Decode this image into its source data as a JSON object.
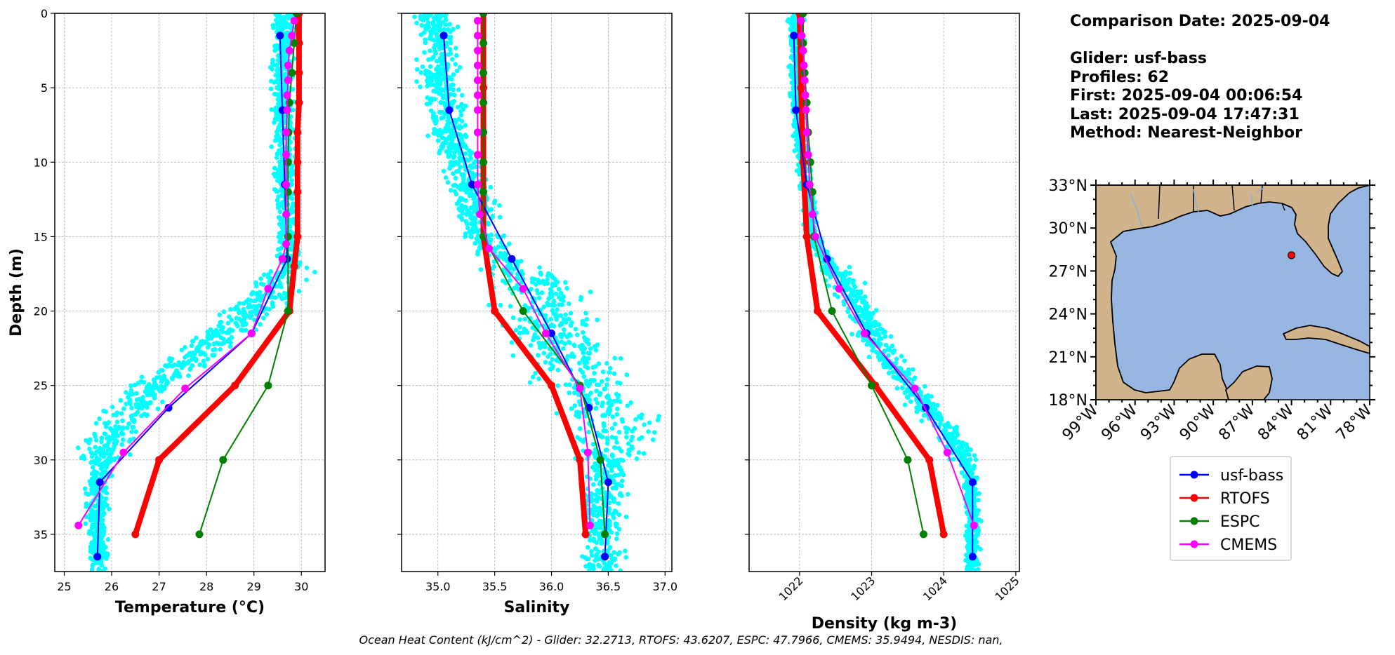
{
  "info": {
    "comparison_date": "Comparison Date: 2025-09-04",
    "glider": "Glider: usf-bass",
    "profiles": "Profiles: 62",
    "first": "First: 2025-09-04 00:06:54",
    "last": "Last: 2025-09-04 17:47:31",
    "method": "Method: Nearest-Neighbor"
  },
  "footer": "Ocean Heat Content (kJ/cm^2) - Glider: 32.2713,  RTOFS: 43.6207,  ESPC: 47.7966,  CMEMS: 35.9494,  NESDIS: nan,",
  "colors": {
    "usf-bass": "#0000ff",
    "RTOFS": "#ff0000",
    "ESPC": "#008000",
    "CMEMS": "#ff00ff",
    "scatter": "#00ffff",
    "land": "#d2b48c",
    "ocean": "#97b6e1"
  },
  "legend": [
    "usf-bass",
    "RTOFS",
    "ESPC",
    "CMEMS"
  ],
  "map": {
    "lat_labels": [
      "33°N",
      "30°N",
      "27°N",
      "24°N",
      "21°N",
      "18°N"
    ],
    "lon_labels": [
      "99°W",
      "96°W",
      "93°W",
      "90°W",
      "87°W",
      "84°W",
      "81°W",
      "78°W"
    ],
    "glider_position": {
      "lon": -84.0,
      "lat": 28.1
    }
  },
  "chart_data": [
    {
      "type": "line",
      "xlabel": "Temperature (°C)",
      "ylabel": "Depth (m)",
      "xlim": [
        24.8,
        30.5
      ],
      "ylim": [
        37.5,
        0
      ],
      "xticks": [
        "25",
        "26",
        "27",
        "28",
        "29",
        "30"
      ],
      "yticks": [
        "0",
        "5",
        "10",
        "15",
        "20",
        "25",
        "30",
        "35"
      ],
      "grid": true,
      "scatter_cloud": [
        [
          0,
          29.65
        ],
        [
          2,
          29.6
        ],
        [
          5,
          29.6
        ],
        [
          8,
          29.62
        ],
        [
          10,
          29.65
        ],
        [
          12,
          29.65
        ],
        [
          15,
          29.7
        ],
        [
          17,
          29.75
        ],
        [
          18,
          29.5
        ],
        [
          19,
          29.3
        ],
        [
          20,
          29.0
        ],
        [
          21,
          28.6
        ],
        [
          22,
          28.1
        ],
        [
          23,
          27.7
        ],
        [
          24,
          27.3
        ],
        [
          25,
          26.9
        ],
        [
          26,
          26.6
        ],
        [
          27,
          26.3
        ],
        [
          28,
          26.1
        ],
        [
          29,
          25.9
        ],
        [
          30,
          25.8
        ],
        [
          31,
          25.75
        ],
        [
          33,
          25.7
        ],
        [
          35,
          25.7
        ],
        [
          37,
          25.7
        ]
      ],
      "series": [
        {
          "name": "usf-bass",
          "points": [
            [
              29.55,
              1.5
            ],
            [
              29.6,
              6.5
            ],
            [
              29.65,
              11.5
            ],
            [
              29.7,
              16.5
            ],
            [
              28.95,
              21.5
            ],
            [
              27.2,
              26.5
            ],
            [
              25.75,
              31.5
            ],
            [
              25.7,
              36.5
            ]
          ]
        },
        {
          "name": "RTOFS",
          "points": [
            [
              29.95,
              0
            ],
            [
              29.95,
              2
            ],
            [
              29.95,
              4
            ],
            [
              29.95,
              6
            ],
            [
              29.92,
              8
            ],
            [
              29.92,
              10
            ],
            [
              29.92,
              12
            ],
            [
              29.92,
              15
            ],
            [
              29.85,
              17
            ],
            [
              29.75,
              20
            ],
            [
              28.6,
              25
            ],
            [
              27.0,
              30
            ],
            [
              26.5,
              35
            ]
          ]
        },
        {
          "name": "ESPC",
          "points": [
            [
              29.9,
              0
            ],
            [
              29.85,
              2
            ],
            [
              29.8,
              4
            ],
            [
              29.75,
              6
            ],
            [
              29.73,
              8
            ],
            [
              29.72,
              10
            ],
            [
              29.72,
              12
            ],
            [
              29.72,
              15
            ],
            [
              29.72,
              20
            ],
            [
              29.3,
              25
            ],
            [
              28.35,
              30
            ],
            [
              27.85,
              35
            ]
          ]
        },
        {
          "name": "CMEMS",
          "points": [
            [
              29.85,
              0.5
            ],
            [
              29.8,
              1.5
            ],
            [
              29.75,
              2.5
            ],
            [
              29.72,
              3.5
            ],
            [
              29.72,
              4.5
            ],
            [
              29.7,
              5.5
            ],
            [
              29.7,
              6.5
            ],
            [
              29.68,
              8.0
            ],
            [
              29.68,
              9.5
            ],
            [
              29.68,
              11.5
            ],
            [
              29.68,
              13.5
            ],
            [
              29.68,
              15.5
            ],
            [
              29.6,
              16.5
            ],
            [
              29.3,
              18.5
            ],
            [
              28.95,
              21.5
            ],
            [
              27.55,
              25.2
            ],
            [
              26.25,
              29.5
            ],
            [
              25.3,
              34.4
            ]
          ]
        }
      ]
    },
    {
      "type": "line",
      "xlabel": "Salinity",
      "xlim": [
        34.68,
        37.06
      ],
      "ylim": [
        37.5,
        0
      ],
      "xticks": [
        "35.0",
        "35.5",
        "36.0",
        "36.5",
        "37.0"
      ],
      "grid": true,
      "scatter_cloud": [
        [
          0,
          34.95
        ],
        [
          2,
          35.0
        ],
        [
          4,
          35.0
        ],
        [
          6,
          35.05
        ],
        [
          8,
          35.1
        ],
        [
          10,
          35.2
        ],
        [
          12,
          35.3
        ],
        [
          14,
          35.35
        ],
        [
          15,
          35.4
        ],
        [
          16,
          35.5
        ],
        [
          17,
          35.65
        ],
        [
          18,
          35.8
        ],
        [
          19,
          35.9
        ],
        [
          20,
          35.95
        ],
        [
          21,
          36.0
        ],
        [
          22,
          36.05
        ],
        [
          23,
          36.15
        ],
        [
          24,
          36.25
        ],
        [
          25,
          36.3
        ],
        [
          26,
          36.4
        ],
        [
          27,
          36.45
        ],
        [
          28,
          36.6
        ],
        [
          29,
          36.6
        ],
        [
          30,
          36.55
        ],
        [
          31,
          36.5
        ],
        [
          33,
          36.45
        ],
        [
          35,
          36.45
        ],
        [
          37,
          36.45
        ]
      ],
      "series": [
        {
          "name": "usf-bass",
          "points": [
            [
              35.05,
              1.5
            ],
            [
              35.1,
              6.5
            ],
            [
              35.3,
              11.5
            ],
            [
              35.65,
              16.5
            ],
            [
              36.0,
              21.5
            ],
            [
              36.33,
              26.5
            ],
            [
              36.5,
              31.5
            ],
            [
              36.47,
              36.5
            ]
          ]
        },
        {
          "name": "RTOFS",
          "points": [
            [
              35.4,
              0
            ],
            [
              35.4,
              5
            ],
            [
              35.4,
              10
            ],
            [
              35.4,
              15
            ],
            [
              35.5,
              20
            ],
            [
              36.0,
              25
            ],
            [
              36.25,
              30
            ],
            [
              36.3,
              35
            ]
          ]
        },
        {
          "name": "ESPC",
          "points": [
            [
              35.4,
              0
            ],
            [
              35.4,
              2
            ],
            [
              35.4,
              4
            ],
            [
              35.4,
              6
            ],
            [
              35.4,
              8
            ],
            [
              35.4,
              10
            ],
            [
              35.4,
              12
            ],
            [
              35.4,
              15
            ],
            [
              35.75,
              20
            ],
            [
              36.25,
              25
            ],
            [
              36.43,
              30
            ],
            [
              36.47,
              35
            ]
          ]
        },
        {
          "name": "CMEMS",
          "points": [
            [
              35.35,
              0.5
            ],
            [
              35.35,
              1.5
            ],
            [
              35.35,
              2.5
            ],
            [
              35.35,
              3.5
            ],
            [
              35.35,
              4.5
            ],
            [
              35.35,
              5.5
            ],
            [
              35.35,
              6.5
            ],
            [
              35.35,
              8.0
            ],
            [
              35.35,
              9.5
            ],
            [
              35.35,
              11.5
            ],
            [
              35.37,
              13.5
            ],
            [
              35.45,
              15.8
            ],
            [
              35.75,
              18.5
            ],
            [
              35.95,
              21.5
            ],
            [
              36.25,
              25.2
            ],
            [
              36.32,
              29.5
            ],
            [
              36.34,
              34.4
            ]
          ]
        }
      ]
    },
    {
      "type": "line",
      "xlabel": "Density (kg m-3)",
      "xlim": [
        1021.3,
        1025.05
      ],
      "ylim": [
        37.5,
        0
      ],
      "xticks": [
        "1022",
        "1023",
        "1024",
        "1025"
      ],
      "grid": true,
      "scatter_cloud": [
        [
          0,
          1021.95
        ],
        [
          2,
          1021.95
        ],
        [
          5,
          1021.95
        ],
        [
          8,
          1022.0
        ],
        [
          10,
          1022.05
        ],
        [
          12,
          1022.1
        ],
        [
          14,
          1022.15
        ],
        [
          15,
          1022.2
        ],
        [
          16,
          1022.3
        ],
        [
          17,
          1022.45
        ],
        [
          18,
          1022.6
        ],
        [
          19,
          1022.75
        ],
        [
          20,
          1022.85
        ],
        [
          21,
          1022.95
        ],
        [
          22,
          1023.05
        ],
        [
          23,
          1023.2
        ],
        [
          24,
          1023.35
        ],
        [
          25,
          1023.55
        ],
        [
          26,
          1023.7
        ],
        [
          27,
          1023.85
        ],
        [
          28,
          1024.05
        ],
        [
          29,
          1024.2
        ],
        [
          30,
          1024.3
        ],
        [
          31,
          1024.35
        ],
        [
          33,
          1024.4
        ],
        [
          35,
          1024.4
        ],
        [
          37,
          1024.4
        ]
      ],
      "series": [
        {
          "name": "usf-bass",
          "points": [
            [
              1021.92,
              1.5
            ],
            [
              1021.95,
              6.5
            ],
            [
              1022.1,
              11.5
            ],
            [
              1022.38,
              16.5
            ],
            [
              1022.93,
              21.5
            ],
            [
              1023.75,
              26.5
            ],
            [
              1024.4,
              31.5
            ],
            [
              1024.4,
              36.5
            ]
          ]
        },
        {
          "name": "RTOFS",
          "points": [
            [
              1022.0,
              0
            ],
            [
              1022.02,
              5
            ],
            [
              1022.05,
              10
            ],
            [
              1022.1,
              15
            ],
            [
              1022.25,
              20
            ],
            [
              1023.05,
              25
            ],
            [
              1023.8,
              30
            ],
            [
              1024.0,
              35
            ]
          ]
        },
        {
          "name": "ESPC",
          "points": [
            [
              1022.05,
              0
            ],
            [
              1022.05,
              2
            ],
            [
              1022.07,
              4
            ],
            [
              1022.1,
              6
            ],
            [
              1022.12,
              8
            ],
            [
              1022.15,
              10
            ],
            [
              1022.18,
              12
            ],
            [
              1022.2,
              15
            ],
            [
              1022.45,
              20
            ],
            [
              1023.0,
              25
            ],
            [
              1023.5,
              30
            ],
            [
              1023.72,
              35
            ]
          ]
        },
        {
          "name": "CMEMS",
          "points": [
            [
              1022.02,
              0.5
            ],
            [
              1022.03,
              1.5
            ],
            [
              1022.05,
              2.5
            ],
            [
              1022.06,
              3.5
            ],
            [
              1022.07,
              4.5
            ],
            [
              1022.08,
              5.5
            ],
            [
              1022.09,
              6.5
            ],
            [
              1022.1,
              8.0
            ],
            [
              1022.12,
              9.5
            ],
            [
              1022.14,
              11.5
            ],
            [
              1022.18,
              13.5
            ],
            [
              1022.22,
              15.0
            ],
            [
              1022.55,
              18.5
            ],
            [
              1022.9,
              21.5
            ],
            [
              1023.6,
              25.2
            ],
            [
              1024.05,
              29.5
            ],
            [
              1024.42,
              34.4
            ]
          ]
        }
      ]
    }
  ]
}
